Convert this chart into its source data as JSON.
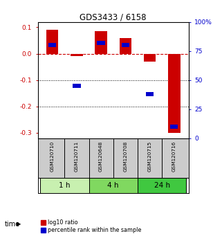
{
  "title": "GDS3433 / 6158",
  "samples": [
    "GSM120710",
    "GSM120711",
    "GSM120648",
    "GSM120708",
    "GSM120715",
    "GSM120716"
  ],
  "log10_ratio": [
    0.09,
    -0.01,
    0.085,
    0.06,
    -0.03,
    -0.3
  ],
  "percentile_rank": [
    80,
    45,
    82,
    80,
    38,
    10
  ],
  "groups": [
    {
      "label": "1 h",
      "indices": [
        0,
        1
      ],
      "color": "#c8f0b0"
    },
    {
      "label": "4 h",
      "indices": [
        2,
        3
      ],
      "color": "#80d860"
    },
    {
      "label": "24 h",
      "indices": [
        4,
        5
      ],
      "color": "#40c840"
    }
  ],
  "ylim_left": [
    -0.32,
    0.12
  ],
  "ylim_right": [
    0,
    100
  ],
  "yticks_left": [
    0.1,
    0.0,
    -0.1,
    -0.2,
    -0.3
  ],
  "yticks_right": [
    100,
    75,
    50,
    25,
    0
  ],
  "bar_width": 0.5,
  "red_color": "#cc0000",
  "blue_color": "#0000cc",
  "bg_color": "#ffffff",
  "plot_bg": "#ffffff",
  "label_log10": "log10 ratio",
  "label_percentile": "percentile rank within the sample",
  "time_label": "time",
  "group_header_bg": "#cccccc"
}
